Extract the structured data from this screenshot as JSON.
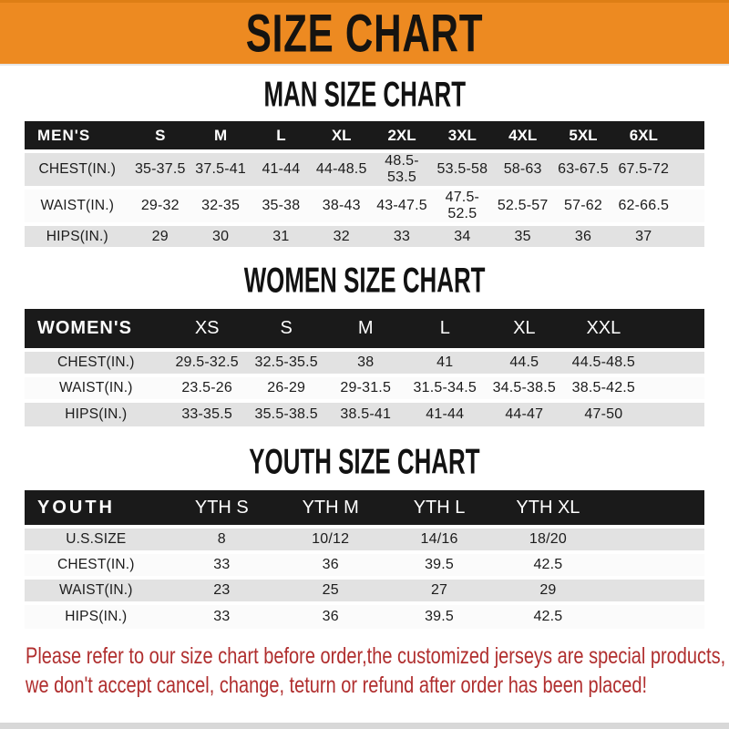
{
  "banner": {
    "title": "SIZE CHART"
  },
  "colors": {
    "banner_orange": "#ED8A21",
    "header_black": "#1A1A1A",
    "row_gray": "#E2E2E2",
    "footer_red": "#B02E2E"
  },
  "sections": [
    {
      "title": "MAN SIZE CHART",
      "header_label": "MEN'S",
      "columns": [
        "S",
        "M",
        "L",
        "XL",
        "2XL",
        "3XL",
        "4XL",
        "5XL",
        "6XL"
      ],
      "rows": [
        {
          "label": "CHEST(IN.)",
          "values": [
            "35-37.5",
            "37.5-41",
            "41-44",
            "44-48.5",
            "48.5-53.5",
            "53.5-58",
            "58-63",
            "63-67.5",
            "67.5-72"
          ]
        },
        {
          "label": "WAIST(IN.)",
          "values": [
            "29-32",
            "32-35",
            "35-38",
            "38-43",
            "43-47.5",
            "47.5-52.5",
            "52.5-57",
            "57-62",
            "62-66.5"
          ]
        },
        {
          "label": "HIPS(IN.)",
          "values": [
            "29",
            "30",
            "31",
            "32",
            "33",
            "34",
            "35",
            "36",
            "37"
          ]
        }
      ]
    },
    {
      "title": "WOMEN SIZE CHART",
      "header_label": "WOMEN'S",
      "columns": [
        "XS",
        "S",
        "M",
        "L",
        "XL",
        "XXL"
      ],
      "rows": [
        {
          "label": "CHEST(IN.)",
          "values": [
            "29.5-32.5",
            "32.5-35.5",
            "38",
            "41",
            "44.5",
            "44.5-48.5"
          ]
        },
        {
          "label": "WAIST(IN.)",
          "values": [
            "23.5-26",
            "26-29",
            "29-31.5",
            "31.5-34.5",
            "34.5-38.5",
            "38.5-42.5"
          ]
        },
        {
          "label": "HIPS(IN.)",
          "values": [
            "33-35.5",
            "35.5-38.5",
            "38.5-41",
            "41-44",
            "44-47",
            "47-50"
          ]
        }
      ]
    },
    {
      "title": "YOUTH SIZE CHART",
      "header_label": "YOUTH",
      "columns": [
        "YTH S",
        "YTH M",
        "YTH L",
        "YTH XL"
      ],
      "rows": [
        {
          "label": "U.S.SIZE",
          "values": [
            "8",
            "10/12",
            "14/16",
            "18/20"
          ]
        },
        {
          "label": "CHEST(IN.)",
          "values": [
            "33",
            "36",
            "39.5",
            "42.5"
          ]
        },
        {
          "label": "WAIST(IN.)",
          "values": [
            "23",
            "25",
            "27",
            "29"
          ]
        },
        {
          "label": "HIPS(IN.)",
          "values": [
            "33",
            "36",
            "39.5",
            "42.5"
          ]
        }
      ]
    }
  ],
  "footer": {
    "line1": "Please refer to our size chart before order,the customized jerseys are special products,",
    "line2": "we don't accept cancel, change, teturn or refund after order has been placed!"
  }
}
